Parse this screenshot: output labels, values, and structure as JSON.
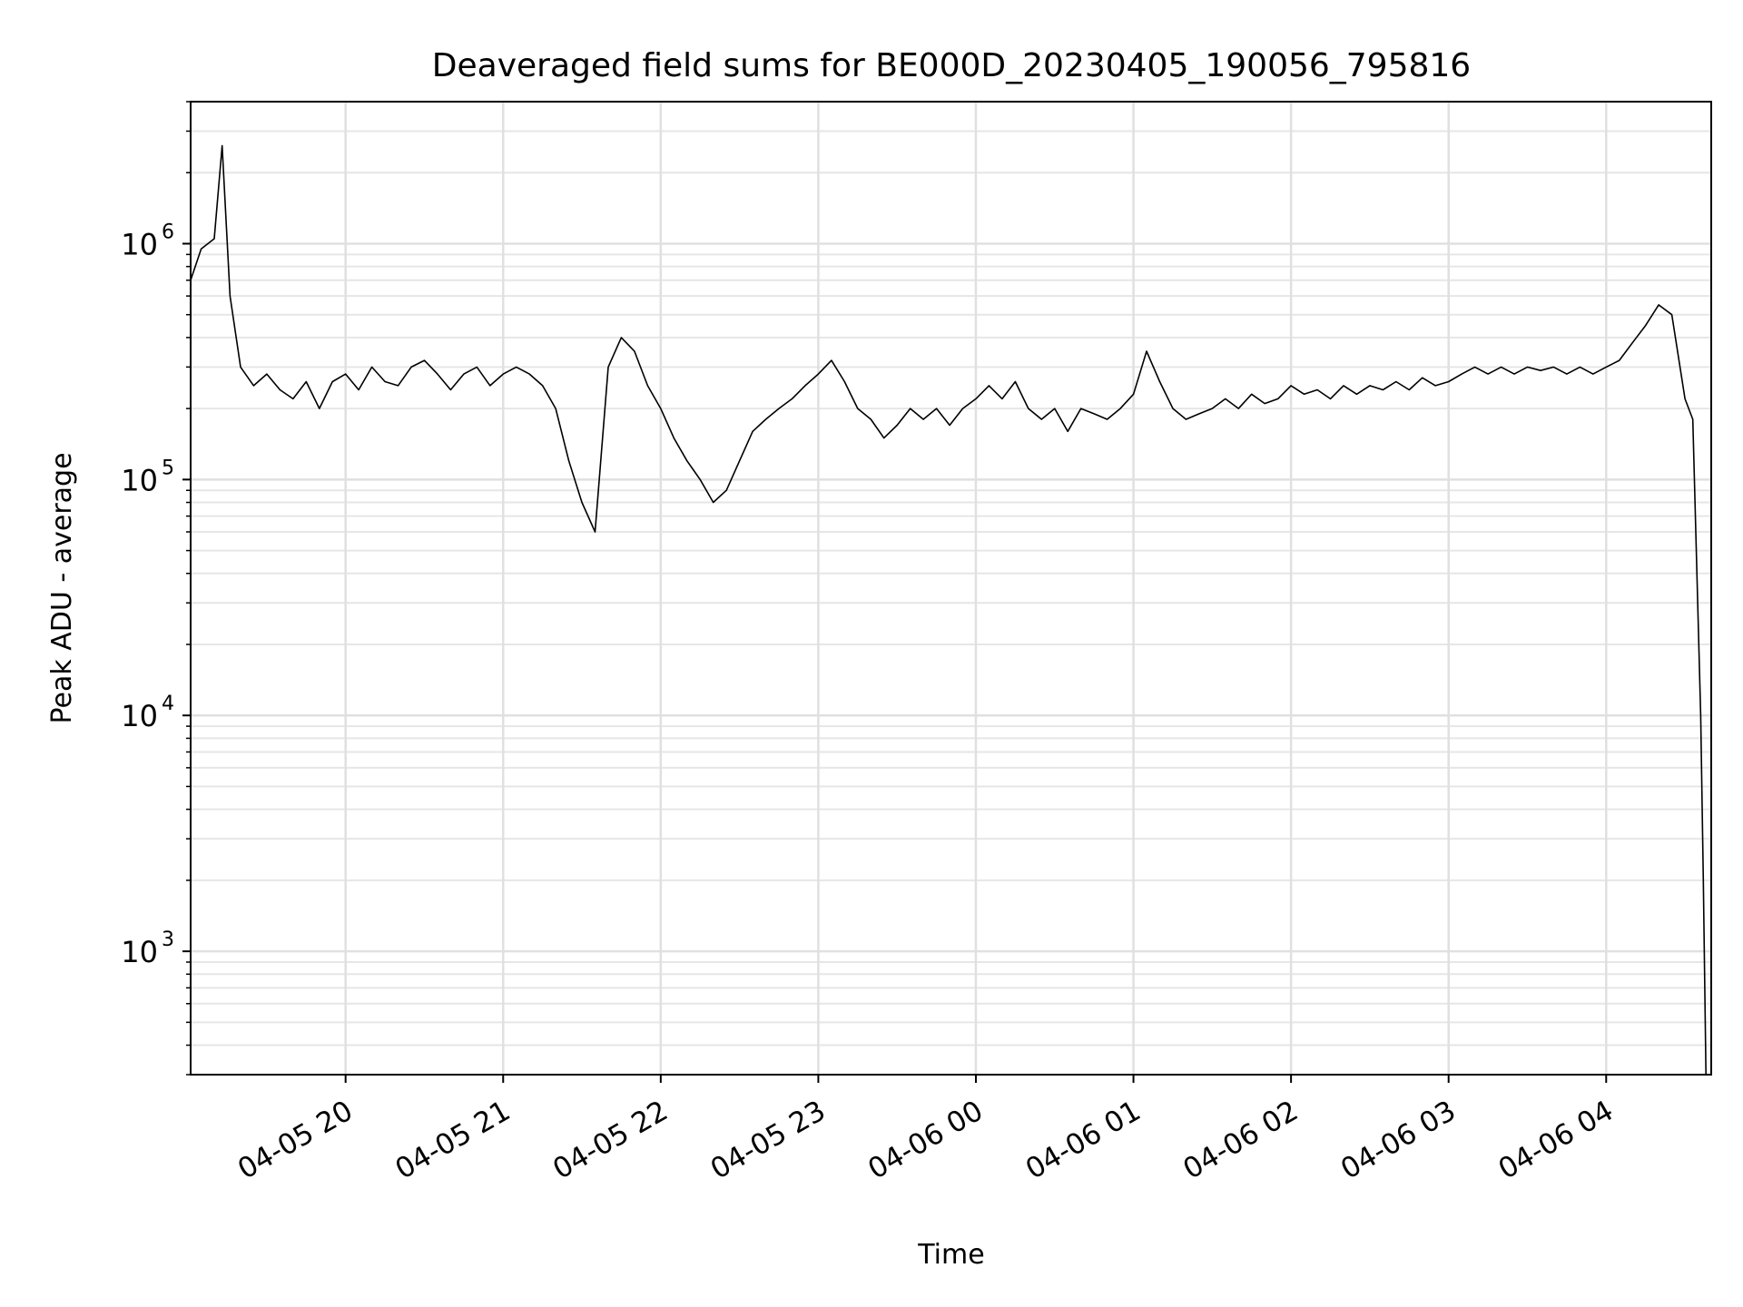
{
  "chart_data": {
    "type": "line",
    "title": "Deaveraged field sums for BE000D_20230405_190056_795816",
    "xlabel": "Time",
    "ylabel": "Peak ADU - average",
    "yscale": "log",
    "ylim": [
      300,
      4000000
    ],
    "xlim": [
      "2023-04-05 19:01",
      "2023-04-06 04:40"
    ],
    "grid": "major and minor, light gray",
    "line_color": "#000000",
    "x_ticks": [
      {
        "t": "2023-04-05 20:00",
        "label": "04-05 20"
      },
      {
        "t": "2023-04-05 21:00",
        "label": "04-05 21"
      },
      {
        "t": "2023-04-05 22:00",
        "label": "04-05 22"
      },
      {
        "t": "2023-04-05 23:00",
        "label": "04-05 23"
      },
      {
        "t": "2023-04-06 00:00",
        "label": "04-06 00"
      },
      {
        "t": "2023-04-06 01:00",
        "label": "04-06 01"
      },
      {
        "t": "2023-04-06 02:00",
        "label": "04-06 02"
      },
      {
        "t": "2023-04-06 03:00",
        "label": "04-06 03"
      },
      {
        "t": "2023-04-06 04:00",
        "label": "04-06 04"
      }
    ],
    "y_ticks": [
      {
        "value": 1000,
        "base": "10",
        "exp": "3"
      },
      {
        "value": 10000,
        "base": "10",
        "exp": "4"
      },
      {
        "value": 100000,
        "base": "10",
        "exp": "5"
      },
      {
        "value": 1000000,
        "base": "10",
        "exp": "6"
      }
    ],
    "series": [
      {
        "points": [
          [
            "2023-04-05 19:01",
            700000
          ],
          [
            "2023-04-05 19:05",
            950000
          ],
          [
            "2023-04-05 19:10",
            1050000
          ],
          [
            "2023-04-05 19:13",
            2600000
          ],
          [
            "2023-04-05 19:16",
            600000
          ],
          [
            "2023-04-05 19:20",
            300000
          ],
          [
            "2023-04-05 19:25",
            250000
          ],
          [
            "2023-04-05 19:30",
            280000
          ],
          [
            "2023-04-05 19:35",
            240000
          ],
          [
            "2023-04-05 19:40",
            220000
          ],
          [
            "2023-04-05 19:45",
            260000
          ],
          [
            "2023-04-05 19:50",
            200000
          ],
          [
            "2023-04-05 19:55",
            260000
          ],
          [
            "2023-04-05 20:00",
            280000
          ],
          [
            "2023-04-05 20:05",
            240000
          ],
          [
            "2023-04-05 20:10",
            300000
          ],
          [
            "2023-04-05 20:15",
            260000
          ],
          [
            "2023-04-05 20:20",
            250000
          ],
          [
            "2023-04-05 20:25",
            300000
          ],
          [
            "2023-04-05 20:30",
            320000
          ],
          [
            "2023-04-05 20:35",
            280000
          ],
          [
            "2023-04-05 20:40",
            240000
          ],
          [
            "2023-04-05 20:45",
            280000
          ],
          [
            "2023-04-05 20:50",
            300000
          ],
          [
            "2023-04-05 20:55",
            250000
          ],
          [
            "2023-04-05 21:00",
            280000
          ],
          [
            "2023-04-05 21:05",
            300000
          ],
          [
            "2023-04-05 21:10",
            280000
          ],
          [
            "2023-04-05 21:15",
            250000
          ],
          [
            "2023-04-05 21:20",
            200000
          ],
          [
            "2023-04-05 21:25",
            120000
          ],
          [
            "2023-04-05 21:30",
            80000
          ],
          [
            "2023-04-05 21:35",
            60000
          ],
          [
            "2023-04-05 21:40",
            300000
          ],
          [
            "2023-04-05 21:45",
            400000
          ],
          [
            "2023-04-05 21:50",
            350000
          ],
          [
            "2023-04-05 21:55",
            250000
          ],
          [
            "2023-04-05 22:00",
            200000
          ],
          [
            "2023-04-05 22:05",
            150000
          ],
          [
            "2023-04-05 22:10",
            120000
          ],
          [
            "2023-04-05 22:15",
            100000
          ],
          [
            "2023-04-05 22:20",
            80000
          ],
          [
            "2023-04-05 22:25",
            90000
          ],
          [
            "2023-04-05 22:30",
            120000
          ],
          [
            "2023-04-05 22:35",
            160000
          ],
          [
            "2023-04-05 22:40",
            180000
          ],
          [
            "2023-04-05 22:45",
            200000
          ],
          [
            "2023-04-05 22:50",
            220000
          ],
          [
            "2023-04-05 22:55",
            250000
          ],
          [
            "2023-04-05 23:00",
            280000
          ],
          [
            "2023-04-05 23:05",
            320000
          ],
          [
            "2023-04-05 23:10",
            260000
          ],
          [
            "2023-04-05 23:15",
            200000
          ],
          [
            "2023-04-05 23:20",
            180000
          ],
          [
            "2023-04-05 23:25",
            150000
          ],
          [
            "2023-04-05 23:30",
            170000
          ],
          [
            "2023-04-05 23:35",
            200000
          ],
          [
            "2023-04-05 23:40",
            180000
          ],
          [
            "2023-04-05 23:45",
            200000
          ],
          [
            "2023-04-05 23:50",
            170000
          ],
          [
            "2023-04-05 23:55",
            200000
          ],
          [
            "2023-04-06 00:00",
            220000
          ],
          [
            "2023-04-06 00:05",
            250000
          ],
          [
            "2023-04-06 00:10",
            220000
          ],
          [
            "2023-04-06 00:15",
            260000
          ],
          [
            "2023-04-06 00:20",
            200000
          ],
          [
            "2023-04-06 00:25",
            180000
          ],
          [
            "2023-04-06 00:30",
            200000
          ],
          [
            "2023-04-06 00:35",
            160000
          ],
          [
            "2023-04-06 00:40",
            200000
          ],
          [
            "2023-04-06 00:45",
            190000
          ],
          [
            "2023-04-06 00:50",
            180000
          ],
          [
            "2023-04-06 00:55",
            200000
          ],
          [
            "2023-04-06 01:00",
            230000
          ],
          [
            "2023-04-06 01:05",
            350000
          ],
          [
            "2023-04-06 01:10",
            260000
          ],
          [
            "2023-04-06 01:15",
            200000
          ],
          [
            "2023-04-06 01:20",
            180000
          ],
          [
            "2023-04-06 01:25",
            190000
          ],
          [
            "2023-04-06 01:30",
            200000
          ],
          [
            "2023-04-06 01:35",
            220000
          ],
          [
            "2023-04-06 01:40",
            200000
          ],
          [
            "2023-04-06 01:45",
            230000
          ],
          [
            "2023-04-06 01:50",
            210000
          ],
          [
            "2023-04-06 01:55",
            220000
          ],
          [
            "2023-04-06 02:00",
            250000
          ],
          [
            "2023-04-06 02:05",
            230000
          ],
          [
            "2023-04-06 02:10",
            240000
          ],
          [
            "2023-04-06 02:15",
            220000
          ],
          [
            "2023-04-06 02:20",
            250000
          ],
          [
            "2023-04-06 02:25",
            230000
          ],
          [
            "2023-04-06 02:30",
            250000
          ],
          [
            "2023-04-06 02:35",
            240000
          ],
          [
            "2023-04-06 02:40",
            260000
          ],
          [
            "2023-04-06 02:45",
            240000
          ],
          [
            "2023-04-06 02:50",
            270000
          ],
          [
            "2023-04-06 02:55",
            250000
          ],
          [
            "2023-04-06 03:00",
            260000
          ],
          [
            "2023-04-06 03:05",
            280000
          ],
          [
            "2023-04-06 03:10",
            300000
          ],
          [
            "2023-04-06 03:15",
            280000
          ],
          [
            "2023-04-06 03:20",
            300000
          ],
          [
            "2023-04-06 03:25",
            280000
          ],
          [
            "2023-04-06 03:30",
            300000
          ],
          [
            "2023-04-06 03:35",
            290000
          ],
          [
            "2023-04-06 03:40",
            300000
          ],
          [
            "2023-04-06 03:45",
            280000
          ],
          [
            "2023-04-06 03:50",
            300000
          ],
          [
            "2023-04-06 03:55",
            280000
          ],
          [
            "2023-04-06 04:00",
            300000
          ],
          [
            "2023-04-06 04:05",
            320000
          ],
          [
            "2023-04-06 04:10",
            380000
          ],
          [
            "2023-04-06 04:15",
            450000
          ],
          [
            "2023-04-06 04:20",
            550000
          ],
          [
            "2023-04-06 04:25",
            500000
          ],
          [
            "2023-04-06 04:30",
            220000
          ],
          [
            "2023-04-06 04:33",
            180000
          ],
          [
            "2023-04-06 04:36",
            10000
          ],
          [
            "2023-04-06 04:37",
            2000
          ],
          [
            "2023-04-06 04:38",
            300
          ]
        ]
      }
    ]
  }
}
